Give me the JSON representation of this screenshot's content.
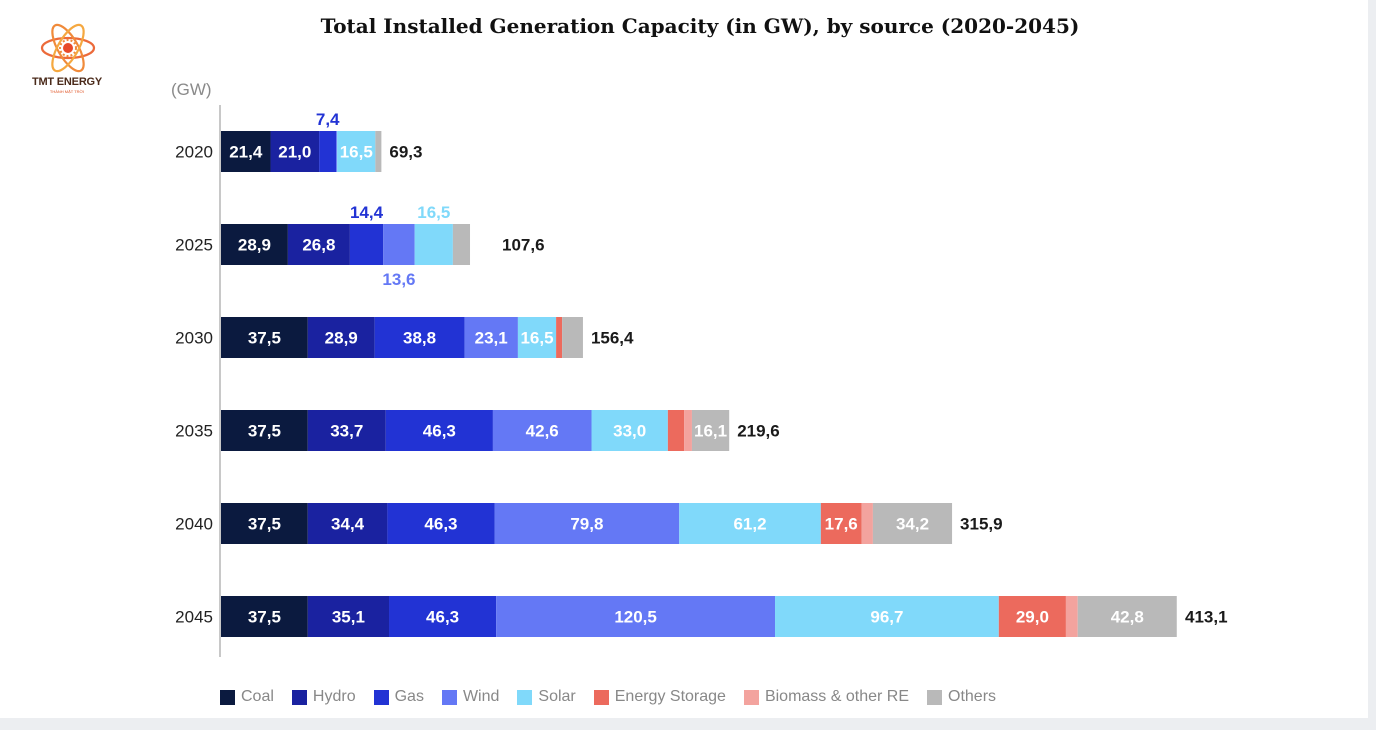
{
  "logo": {
    "name": "TMT ENERGY",
    "tagline": "THÀNH MẶT TRỜI"
  },
  "chart_data": {
    "type": "bar",
    "orientation": "horizontal",
    "stacked": true,
    "title": "Total Installed Generation Capacity (in GW), by source (2020-2045)",
    "unit_label": "(GW)",
    "categories": [
      "2020",
      "2025",
      "2030",
      "2035",
      "2040",
      "2045"
    ],
    "totals": [
      "69,3",
      "107,6",
      "156,4",
      "219,6",
      "315,9",
      "413,1"
    ],
    "total_values": [
      69.3,
      107.6,
      156.4,
      219.6,
      315.9,
      413.1
    ],
    "series": [
      {
        "name": "Coal",
        "color": "#0b1a3f",
        "values": [
          21.4,
          28.9,
          37.5,
          37.5,
          37.5,
          37.5
        ],
        "labels": [
          "21,4",
          "28,9",
          "37,5",
          "37,5",
          "37,5",
          "37,5"
        ],
        "label_pos": [
          "inside",
          "inside",
          "inside",
          "inside",
          "inside",
          "inside"
        ]
      },
      {
        "name": "Hydro",
        "color": "#1a22a0",
        "values": [
          21.0,
          26.8,
          28.9,
          33.7,
          34.4,
          35.1
        ],
        "labels": [
          "21,0",
          "26,8",
          "28,9",
          "33,7",
          "34,4",
          "35,1"
        ],
        "label_pos": [
          "inside",
          "inside",
          "inside",
          "inside",
          "inside",
          "inside"
        ]
      },
      {
        "name": "Gas",
        "color": "#2233d4",
        "values": [
          7.4,
          14.4,
          38.8,
          46.3,
          46.3,
          46.3
        ],
        "labels": [
          "7,4",
          "14,4",
          "38,8",
          "46,3",
          "46,3",
          "46,3"
        ],
        "label_pos": [
          "above",
          "above",
          "inside",
          "inside",
          "inside",
          "inside"
        ]
      },
      {
        "name": "Wind",
        "color": "#6478f5",
        "values": [
          0.4,
          13.6,
          23.1,
          42.6,
          79.8,
          120.5
        ],
        "labels": [
          "",
          "13,6",
          "23,1",
          "42,6",
          "79,8",
          "120,5"
        ],
        "label_pos": [
          "none",
          "below",
          "inside",
          "inside",
          "inside",
          "inside"
        ]
      },
      {
        "name": "Solar",
        "color": "#80d9fa",
        "values": [
          16.5,
          16.5,
          16.5,
          33.0,
          61.2,
          96.7
        ],
        "labels": [
          "16,5",
          "16,5",
          "16,5",
          "33,0",
          "61,2",
          "96,7"
        ],
        "label_pos": [
          "inside",
          "above",
          "inside",
          "inside",
          "inside",
          "inside"
        ]
      },
      {
        "name": "Energy Storage",
        "color": "#ec6a5d",
        "values": [
          0,
          0,
          2.6,
          7.0,
          17.6,
          29.0
        ],
        "labels": [
          "",
          "",
          "",
          "",
          "17,6",
          "29,0"
        ],
        "label_pos": [
          "none",
          "none",
          "none",
          "none",
          "inside",
          "inside"
        ]
      },
      {
        "name": "Biomass & other RE",
        "color": "#f3a39e",
        "values": [
          0,
          0,
          0,
          3.4,
          4.9,
          5.1
        ],
        "labels": [
          "",
          "",
          "",
          "",
          "",
          ""
        ],
        "label_pos": [
          "none",
          "none",
          "none",
          "none",
          "none",
          "none"
        ]
      },
      {
        "name": "Others",
        "color": "#b9b9b9",
        "values": [
          2.6,
          7.4,
          9.0,
          16.1,
          34.2,
          42.8
        ],
        "labels": [
          "",
          "",
          "",
          "16,1",
          "34,2",
          "42,8"
        ],
        "label_pos": [
          "none",
          "none",
          "none",
          "inside",
          "inside",
          "inside"
        ]
      }
    ],
    "xlim": [
      0,
      413.1
    ],
    "grid": false,
    "legend": "bottom"
  }
}
